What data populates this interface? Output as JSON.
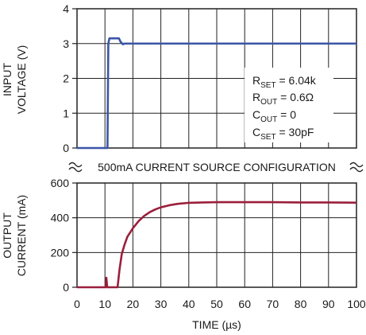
{
  "chart_data": [
    {
      "type": "line",
      "ylabel": [
        "INPUT",
        "VOLTAGE (V)"
      ],
      "xlim": [
        0,
        100
      ],
      "ylim": [
        0,
        4
      ],
      "x_ticks": [
        0,
        10,
        20,
        30,
        40,
        50,
        60,
        70,
        80,
        90,
        100
      ],
      "y_ticks": [
        0,
        1,
        2,
        3,
        4
      ],
      "grid": true,
      "series": [
        {
          "color": "#3a56a6",
          "x": [
            0,
            10.9,
            11.2,
            11.6,
            15,
            15.6,
            16.4,
            17,
            20,
            30,
            40,
            50,
            60,
            70,
            80,
            90,
            100
          ],
          "y": [
            0,
            0,
            3.0,
            3.15,
            3.15,
            3.05,
            2.98,
            3.0,
            3.0,
            3.0,
            3.0,
            3.0,
            3.0,
            3.0,
            3.0,
            3.0,
            3.0
          ]
        }
      ],
      "annotations": [
        {
          "main": "R",
          "sub": "SET",
          "rest": " = 6.04k"
        },
        {
          "main": "R",
          "sub": "OUT",
          "rest": " = 0.6Ω"
        },
        {
          "main": "C",
          "sub": "OUT",
          "rest": " = 0"
        },
        {
          "main": "C",
          "sub": "SET",
          "rest": " = 30pF"
        }
      ]
    },
    {
      "type": "line",
      "ylabel": [
        "OUTPUT",
        "CURRENT (mA)"
      ],
      "xlabel": "TIME (µs)",
      "xlim": [
        0,
        100
      ],
      "ylim": [
        0,
        600
      ],
      "x_ticks": [
        0,
        10,
        20,
        30,
        40,
        50,
        60,
        70,
        80,
        90,
        100
      ],
      "y_ticks": [
        0,
        200,
        400,
        600
      ],
      "grid": true,
      "series": [
        {
          "color": "#9b1f3c",
          "x": [
            0,
            10.3,
            10.5,
            10.8,
            11.1,
            14.5,
            15.2,
            16,
            17,
            18,
            20,
            22,
            24,
            26,
            28,
            30,
            33,
            36,
            40,
            45,
            50,
            60,
            70,
            80,
            90,
            100
          ],
          "y": [
            0,
            0,
            55,
            0,
            0,
            0,
            100,
            190,
            245,
            290,
            340,
            380,
            410,
            432,
            448,
            460,
            472,
            480,
            486,
            488,
            490,
            490,
            490,
            488,
            488,
            487
          ]
        }
      ]
    }
  ],
  "banner": "500mA CURRENT SOURCE CONFIGURATION",
  "colors": {
    "grid": "#222222",
    "voltage": "#3a56a6",
    "current": "#9b1f3c"
  }
}
